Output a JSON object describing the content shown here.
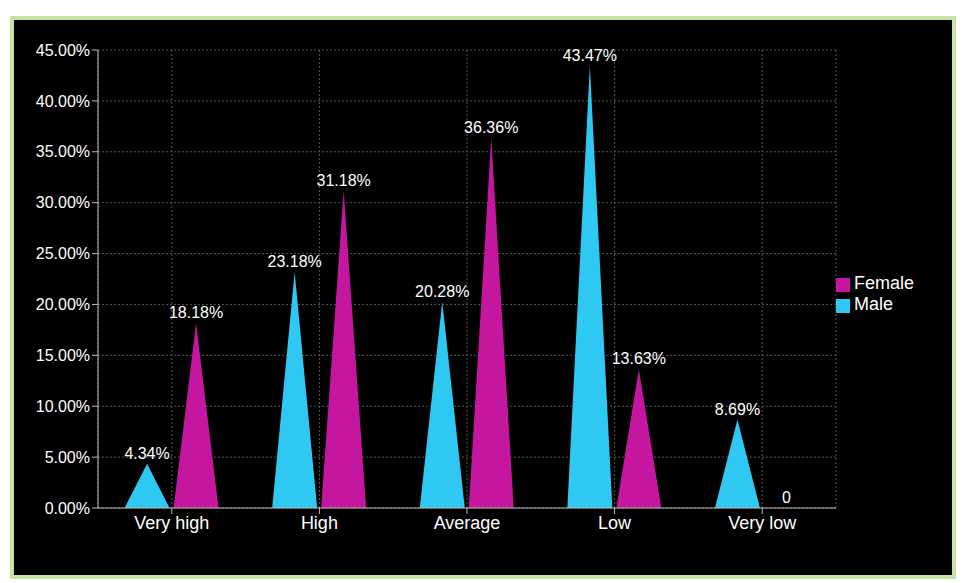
{
  "chart_data": {
    "type": "bar",
    "categories": [
      "Very high",
      "High",
      "Average",
      "Low",
      "Very low"
    ],
    "series": [
      {
        "name": "Male",
        "color": "#2ec8f2",
        "values": [
          4.34,
          23.18,
          20.28,
          43.47,
          8.69
        ],
        "value_labels": [
          "4.34%",
          "23.18%",
          "20.28%",
          "43.47%",
          "8.69%"
        ]
      },
      {
        "name": "Female",
        "color": "#c4169e",
        "values": [
          18.18,
          31.18,
          36.36,
          13.63,
          0
        ],
        "value_labels": [
          "18.18%",
          "31.18%",
          "36.36%",
          "13.63%",
          "0"
        ]
      }
    ],
    "ylim": [
      0,
      45
    ],
    "yticks": [
      {
        "value": 0,
        "label": "0.00%"
      },
      {
        "value": 5,
        "label": "5.00%"
      },
      {
        "value": 10,
        "label": "10.00%"
      },
      {
        "value": 15,
        "label": "15.00%"
      },
      {
        "value": 20,
        "label": "20.00%"
      },
      {
        "value": 25,
        "label": "25.00%"
      },
      {
        "value": 30,
        "label": "30.00%"
      },
      {
        "value": 35,
        "label": "35.00%"
      },
      {
        "value": 40,
        "label": "40.00%"
      },
      {
        "value": 45,
        "label": "45.00%"
      }
    ],
    "grid": true,
    "legend": "right",
    "data_labels": true
  }
}
